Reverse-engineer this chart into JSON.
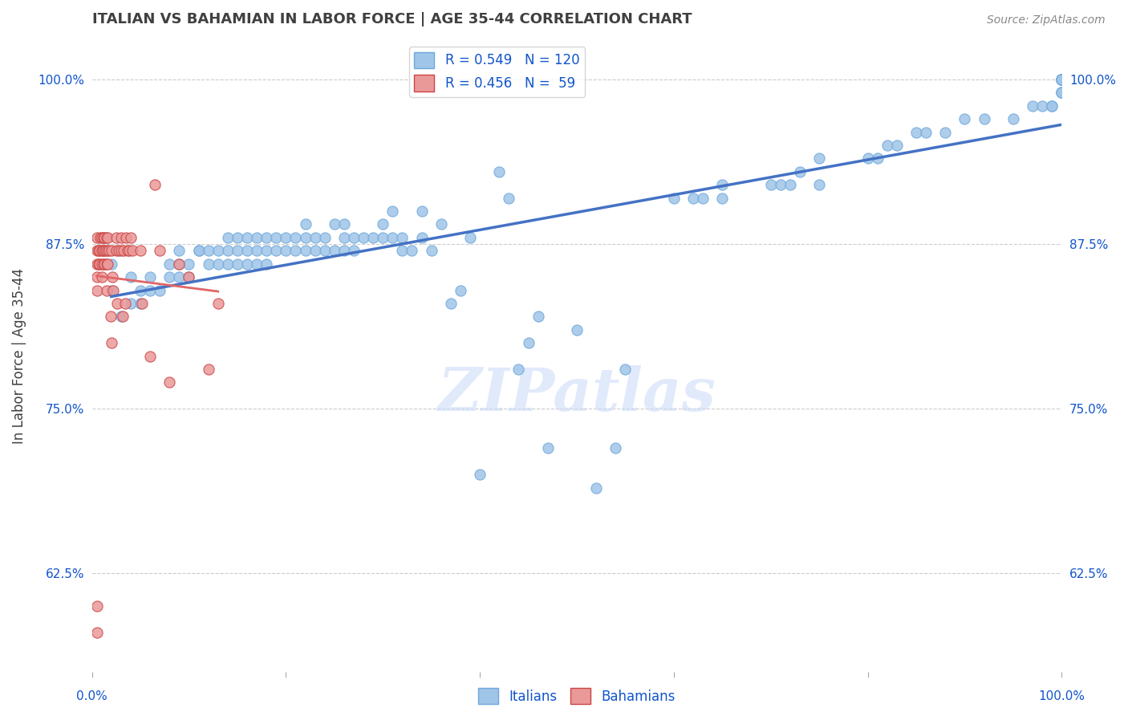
{
  "title": "ITALIAN VS BAHAMIAN IN LABOR FORCE | AGE 35-44 CORRELATION CHART",
  "source": "Source: ZipAtlas.com",
  "ylabel": "In Labor Force | Age 35-44",
  "xlim": [
    0.0,
    1.0
  ],
  "ylim": [
    0.55,
    1.03
  ],
  "yticks": [
    0.625,
    0.75,
    0.875,
    1.0
  ],
  "ytick_labels": [
    "62.5%",
    "75.0%",
    "87.5%",
    "100.0%"
  ],
  "blue_color": "#9fc5e8",
  "blue_edge": "#6fa8dc",
  "pink_color": "#ea9999",
  "pink_edge": "#cc4444",
  "trendline_blue": "#4472c4",
  "trendline_pink": "#e06666",
  "legend_r_blue": "0.549",
  "legend_n_blue": "120",
  "legend_r_pink": "0.456",
  "legend_n_pink": " 59",
  "watermark": "ZIPatlas",
  "watermark_color": "#c9daf8",
  "background_color": "#ffffff",
  "grid_color": "#cccccc",
  "title_color": "#404040",
  "axis_label_color": "#1155cc",
  "source_color": "#888888",
  "blue_scatter_x": [
    0.02,
    0.02,
    0.03,
    0.04,
    0.04,
    0.05,
    0.05,
    0.06,
    0.06,
    0.07,
    0.08,
    0.08,
    0.09,
    0.09,
    0.09,
    0.1,
    0.1,
    0.11,
    0.11,
    0.12,
    0.12,
    0.13,
    0.13,
    0.14,
    0.14,
    0.14,
    0.15,
    0.15,
    0.15,
    0.16,
    0.16,
    0.16,
    0.17,
    0.17,
    0.17,
    0.18,
    0.18,
    0.18,
    0.19,
    0.19,
    0.2,
    0.2,
    0.21,
    0.21,
    0.22,
    0.22,
    0.22,
    0.23,
    0.23,
    0.24,
    0.24,
    0.25,
    0.25,
    0.26,
    0.26,
    0.26,
    0.27,
    0.27,
    0.28,
    0.29,
    0.3,
    0.3,
    0.31,
    0.31,
    0.32,
    0.32,
    0.33,
    0.34,
    0.34,
    0.35,
    0.36,
    0.37,
    0.38,
    0.39,
    0.4,
    0.42,
    0.43,
    0.44,
    0.45,
    0.46,
    0.47,
    0.5,
    0.52,
    0.54,
    0.55,
    0.6,
    0.62,
    0.63,
    0.65,
    0.65,
    0.7,
    0.71,
    0.72,
    0.73,
    0.75,
    0.75,
    0.8,
    0.81,
    0.82,
    0.83,
    0.85,
    0.86,
    0.88,
    0.9,
    0.92,
    0.95,
    0.97,
    0.98,
    0.99,
    0.99,
    1.0,
    1.0,
    1.0,
    1.0,
    1.0,
    1.0,
    1.0,
    1.0,
    1.0,
    1.0,
    1.0
  ],
  "blue_scatter_y": [
    0.84,
    0.86,
    0.82,
    0.83,
    0.85,
    0.83,
    0.84,
    0.84,
    0.85,
    0.84,
    0.85,
    0.86,
    0.85,
    0.86,
    0.87,
    0.85,
    0.86,
    0.87,
    0.87,
    0.86,
    0.87,
    0.86,
    0.87,
    0.86,
    0.87,
    0.88,
    0.86,
    0.87,
    0.88,
    0.86,
    0.87,
    0.88,
    0.86,
    0.87,
    0.88,
    0.86,
    0.87,
    0.88,
    0.87,
    0.88,
    0.87,
    0.88,
    0.87,
    0.88,
    0.87,
    0.88,
    0.89,
    0.87,
    0.88,
    0.87,
    0.88,
    0.87,
    0.89,
    0.87,
    0.88,
    0.89,
    0.87,
    0.88,
    0.88,
    0.88,
    0.88,
    0.89,
    0.88,
    0.9,
    0.87,
    0.88,
    0.87,
    0.88,
    0.9,
    0.87,
    0.89,
    0.83,
    0.84,
    0.88,
    0.7,
    0.93,
    0.91,
    0.78,
    0.8,
    0.82,
    0.72,
    0.81,
    0.69,
    0.72,
    0.78,
    0.91,
    0.91,
    0.91,
    0.91,
    0.92,
    0.92,
    0.92,
    0.92,
    0.93,
    0.92,
    0.94,
    0.94,
    0.94,
    0.95,
    0.95,
    0.96,
    0.96,
    0.96,
    0.97,
    0.97,
    0.97,
    0.98,
    0.98,
    0.98,
    0.98,
    0.99,
    0.99,
    0.99,
    1.0,
    1.0,
    1.0,
    1.0,
    1.0,
    1.0,
    1.0,
    1.0
  ],
  "pink_scatter_x": [
    0.005,
    0.005,
    0.005,
    0.005,
    0.005,
    0.007,
    0.007,
    0.008,
    0.008,
    0.009,
    0.01,
    0.01,
    0.01,
    0.01,
    0.011,
    0.012,
    0.012,
    0.013,
    0.013,
    0.013,
    0.014,
    0.015,
    0.015,
    0.015,
    0.016,
    0.016,
    0.016,
    0.018,
    0.019,
    0.02,
    0.02,
    0.021,
    0.022,
    0.025,
    0.025,
    0.026,
    0.028,
    0.03,
    0.03,
    0.032,
    0.033,
    0.034,
    0.035,
    0.037,
    0.038,
    0.04,
    0.042,
    0.05,
    0.052,
    0.06,
    0.065,
    0.07,
    0.08,
    0.09,
    0.1,
    0.12,
    0.13,
    0.005,
    0.005
  ],
  "pink_scatter_y": [
    0.84,
    0.85,
    0.86,
    0.87,
    0.88,
    0.86,
    0.87,
    0.86,
    0.87,
    0.88,
    0.85,
    0.86,
    0.87,
    0.88,
    0.87,
    0.86,
    0.88,
    0.86,
    0.87,
    0.88,
    0.87,
    0.84,
    0.86,
    0.88,
    0.86,
    0.87,
    0.88,
    0.87,
    0.82,
    0.8,
    0.87,
    0.85,
    0.84,
    0.87,
    0.88,
    0.83,
    0.87,
    0.87,
    0.88,
    0.82,
    0.87,
    0.83,
    0.88,
    0.87,
    0.87,
    0.88,
    0.87,
    0.87,
    0.83,
    0.79,
    0.92,
    0.87,
    0.77,
    0.86,
    0.85,
    0.78,
    0.83,
    0.58,
    0.6
  ]
}
